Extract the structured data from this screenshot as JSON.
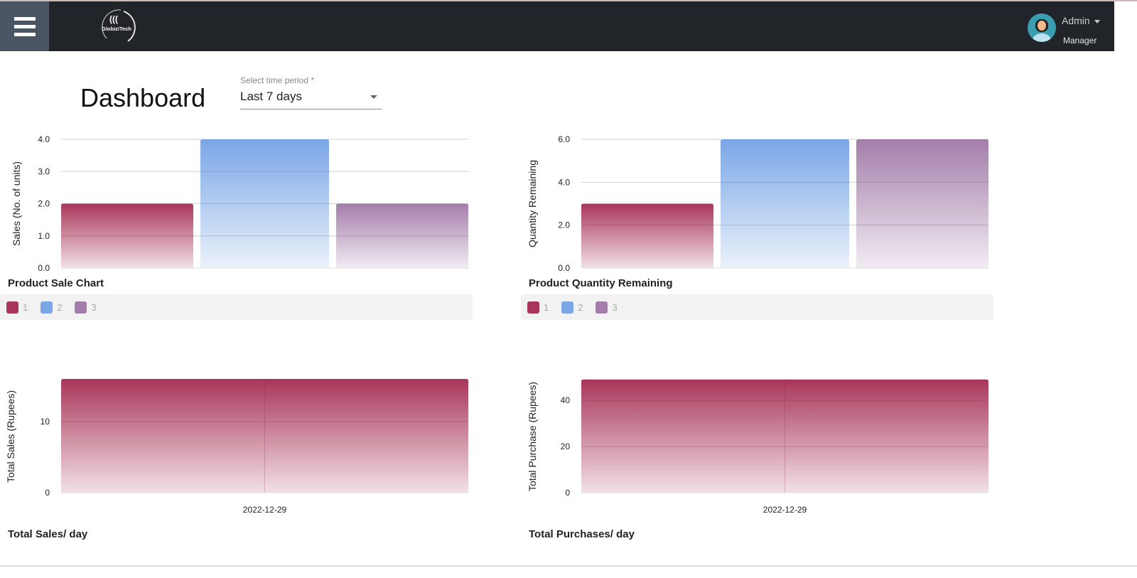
{
  "header": {
    "menu_icon": "hamburger-icon",
    "logo_text": "GlobiziTech",
    "user": {
      "name": "Admin",
      "role": "Manager"
    }
  },
  "page": {
    "title": "Dashboard",
    "time_period": {
      "label": "Select time period *",
      "value": "Last 7 days"
    }
  },
  "colors": {
    "c1": "#a8365a",
    "c2": "#7aa6e6",
    "c3": "#a47eaa"
  },
  "chart_data": [
    {
      "id": "sale",
      "type": "bar",
      "title": "Product Sale Chart",
      "ylabel": "Sales (No. of units)",
      "categories": [
        "1",
        "2",
        "3"
      ],
      "values": [
        2,
        4,
        2
      ],
      "ylim": [
        0,
        4
      ],
      "yticks": [
        "0.0",
        "1.0",
        "2.0",
        "3.0",
        "4.0"
      ],
      "legend": [
        "1",
        "2",
        "3"
      ],
      "grid": true,
      "legend_placement": "bottom"
    },
    {
      "id": "qty",
      "type": "bar",
      "title": "Product Quantity Remaining",
      "ylabel": "Quantity Remaining",
      "categories": [
        "1",
        "2",
        "3"
      ],
      "values": [
        3,
        6,
        6
      ],
      "ylim": [
        0,
        6
      ],
      "yticks": [
        "0.0",
        "2.0",
        "4.0",
        "6.0"
      ],
      "legend": [
        "1",
        "2",
        "3"
      ],
      "grid": true,
      "legend_placement": "bottom"
    },
    {
      "id": "tsales",
      "type": "bar",
      "title": "Total Sales/ day",
      "ylabel": "Total Sales (Rupees)",
      "categories": [
        "2022-12-29"
      ],
      "values": [
        16
      ],
      "ylim": [
        0,
        16
      ],
      "yticks": [
        "0",
        "10"
      ],
      "grid": true
    },
    {
      "id": "tpurch",
      "type": "bar",
      "title": "Total Purchases/ day",
      "ylabel": "Total Purchase (Rupees)",
      "categories": [
        "2022-12-29"
      ],
      "values": [
        49
      ],
      "ylim": [
        0,
        49
      ],
      "yticks": [
        "0",
        "20",
        "40"
      ],
      "grid": true
    }
  ]
}
